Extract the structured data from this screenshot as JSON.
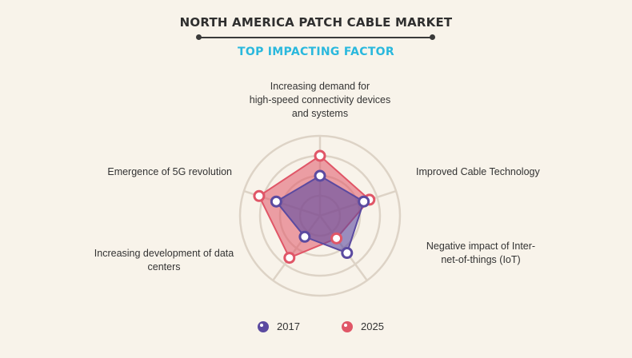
{
  "chart_data": {
    "type": "radar",
    "title": "NORTH AMERICA PATCH CABLE MARKET",
    "subtitle": "TOP IMPACTING FACTOR",
    "categories": [
      "Increasing demand for high-speed connectivity devices and systems",
      "Improved Cable Technology",
      "Negative impact of Inter-net-of-things (IoT)",
      "Increasing development of data centers",
      "Emergence of 5G revolution"
    ],
    "rings": 4,
    "range": [
      0,
      4
    ],
    "grid": true,
    "legend": "bottom",
    "series": [
      {
        "name": "2017",
        "values": [
          2.0,
          2.3,
          2.3,
          1.3,
          2.3
        ],
        "color": "#5b4aa0"
      },
      {
        "name": "2025",
        "values": [
          3.0,
          2.6,
          1.4,
          2.6,
          3.2
        ],
        "color": "#e05667"
      }
    ]
  },
  "labels": {
    "top": [
      "Increasing demand for",
      "high-speed connectivity devices",
      "and systems"
    ],
    "right": [
      "Improved Cable Technology"
    ],
    "bottom_right": [
      "Negative impact of Inter-",
      "net-of-things (IoT)"
    ],
    "bottom_left": [
      "Increasing development of data",
      "centers"
    ],
    "left": [
      "Emergence of 5G revolution"
    ]
  }
}
